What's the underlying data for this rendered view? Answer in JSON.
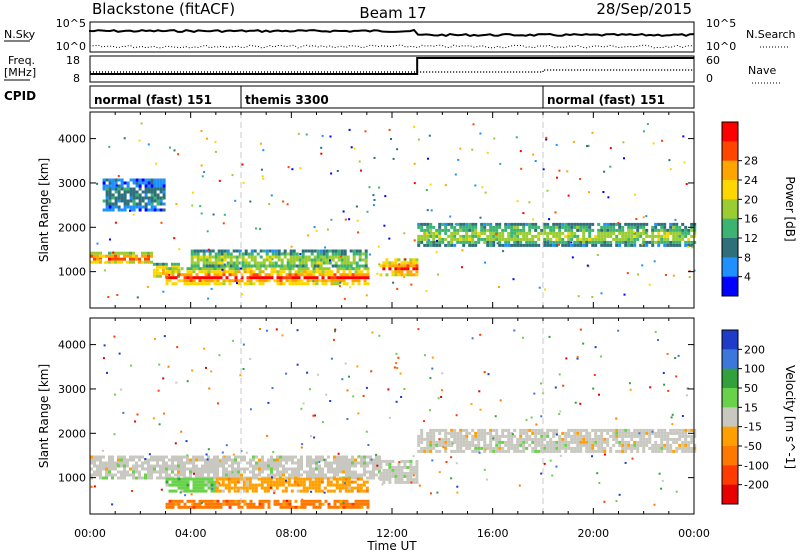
{
  "header": {
    "station": "Blackstone (fitACF)",
    "beam": "Beam 17",
    "date": "28/Sep/2015"
  },
  "param_panels": {
    "left_labels": {
      "nsky": "N.Sky",
      "freq": "Freq.",
      "freq_unit": "[MHz]",
      "cpid": "CPID"
    },
    "right_labels": {
      "nsearch": "N.Search",
      "nave": "Nave"
    },
    "nsky_ticks": [
      "10^5",
      "10^0"
    ],
    "nsearch_ticks": [
      "10^5",
      "10^0"
    ],
    "freq_ticks": [
      "18",
      "8"
    ],
    "nave_ticks": [
      "60",
      "0"
    ]
  },
  "cpid_segments": [
    {
      "label": "normal (fast) 151",
      "start_hour": 0
    },
    {
      "label": "themis 3300",
      "start_hour": 6
    },
    {
      "label": "normal (fast) 151",
      "start_hour": 18
    }
  ],
  "time_axis": {
    "label": "Time UT",
    "ticks": [
      "00:00",
      "04:00",
      "08:00",
      "12:00",
      "16:00",
      "20:00",
      "00:00"
    ]
  },
  "chart_data": [
    {
      "type": "heatmap",
      "title": "Power",
      "xlabel": "Time UT",
      "ylabel": "Slant Range [km]",
      "xlim_hours": [
        0,
        24
      ],
      "ylim": [
        180,
        4600
      ],
      "yticks": [
        1000,
        2000,
        3000,
        4000
      ],
      "colorbar": {
        "label": "Power [dB]",
        "ticks": [
          "4",
          "8",
          "12",
          "16",
          "20",
          "24",
          "28"
        ],
        "colors": [
          "#0000ff",
          "#1e90ff",
          "#2e6f7a",
          "#3cb371",
          "#9acd32",
          "#ffd700",
          "#ffa500",
          "#ff4500",
          "#ff0000"
        ]
      },
      "echo_bands": [
        {
          "t0": 0.0,
          "t1": 2.5,
          "range0": 1200,
          "range1": 1450,
          "power_db": 26
        },
        {
          "t0": 2.5,
          "t1": 3.5,
          "range0": 900,
          "range1": 1200,
          "power_db": 22
        },
        {
          "t0": 3.0,
          "t1": 11.0,
          "range0": 700,
          "range1": 1100,
          "power_db": 28
        },
        {
          "t0": 4.0,
          "t1": 11.0,
          "range0": 1100,
          "range1": 1500,
          "power_db": 14
        },
        {
          "t0": 11.5,
          "t1": 13.0,
          "range0": 900,
          "range1": 1300,
          "power_db": 26
        },
        {
          "t0": 13.0,
          "t1": 24.0,
          "range0": 1600,
          "range1": 2100,
          "power_db": 14
        },
        {
          "t0": 0.5,
          "t1": 3.0,
          "range0": 2400,
          "range1": 3100,
          "power_db": 6
        }
      ]
    },
    {
      "type": "heatmap",
      "title": "Velocity",
      "xlabel": "Time UT",
      "ylabel": "Slant Range [km]",
      "xlim_hours": [
        0,
        24
      ],
      "ylim": [
        180,
        4600
      ],
      "yticks": [
        1000,
        2000,
        3000,
        4000
      ],
      "colorbar": {
        "label": "Velocity [m s^-1]",
        "ticks": [
          "200",
          "100",
          "50",
          "15",
          "-15",
          "-50",
          "-100",
          "-200"
        ],
        "colors": [
          "#1e3cc8",
          "#3c78dc",
          "#32a03c",
          "#6ad24a",
          "#c8c8c0",
          "#ffa000",
          "#ff7800",
          "#ff3c00",
          "#e60000"
        ]
      },
      "echo_bands": [
        {
          "t0": 0.0,
          "t1": 11.5,
          "range0": 1000,
          "range1": 1500,
          "velocity": 0
        },
        {
          "t0": 3.0,
          "t1": 5.0,
          "range0": 700,
          "range1": 1000,
          "velocity": 30
        },
        {
          "t0": 5.0,
          "t1": 11.0,
          "range0": 700,
          "range1": 1000,
          "velocity": -40
        },
        {
          "t0": 11.5,
          "t1": 13.0,
          "range0": 900,
          "range1": 1400,
          "velocity": 0
        },
        {
          "t0": 13.0,
          "t1": 24.0,
          "range0": 1600,
          "range1": 2100,
          "velocity": 0
        },
        {
          "t0": 3.0,
          "t1": 11.0,
          "range0": 300,
          "range1": 500,
          "velocity": -60
        }
      ]
    }
  ]
}
